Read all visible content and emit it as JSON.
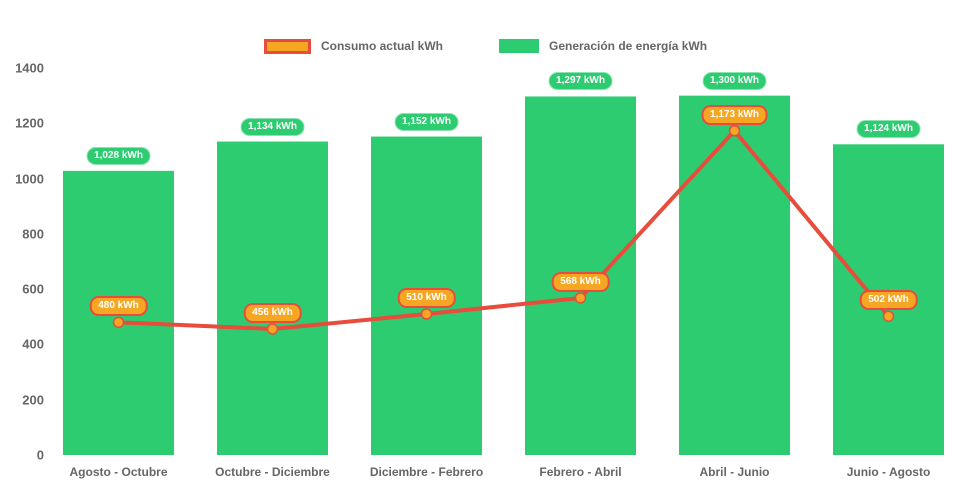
{
  "chart_data": {
    "type": "bar",
    "title": "",
    "xlabel": "",
    "ylabel": "",
    "categories": [
      "Agosto - Octubre",
      "Octubre - Diciembre",
      "Diciembre - Febrero",
      "Febrero - Abril",
      "Abril - Junio",
      "Junio - Agosto"
    ],
    "series": [
      {
        "name": "Generación de energía kWh",
        "type": "bar",
        "color": "#2ecc71",
        "values": [
          1028,
          1134,
          1152,
          1297,
          1300,
          1124
        ],
        "value_labels": [
          "1,028 kWh",
          "1,134 kWh",
          "1,152 kWh",
          "1,297 kWh",
          "1,300 kWh",
          "1,124 kWh"
        ]
      },
      {
        "name": "Consumo actual kWh",
        "type": "line",
        "color": "#e74c3c",
        "marker_color": "#f5a623",
        "values": [
          480,
          456,
          510,
          568,
          1173,
          502
        ],
        "value_labels": [
          "480 kWh",
          "456 kWh",
          "510 kWh",
          "568 kWh",
          "1,173 kWh",
          "502 kWh"
        ]
      }
    ],
    "ylim": [
      0,
      1400
    ],
    "yticks": [
      0,
      200,
      400,
      600,
      800,
      1000,
      1200,
      1400
    ],
    "grid": false,
    "legend_position": "top",
    "axis_text_color": "#666666",
    "value_label_text_color": "#ffffff"
  }
}
